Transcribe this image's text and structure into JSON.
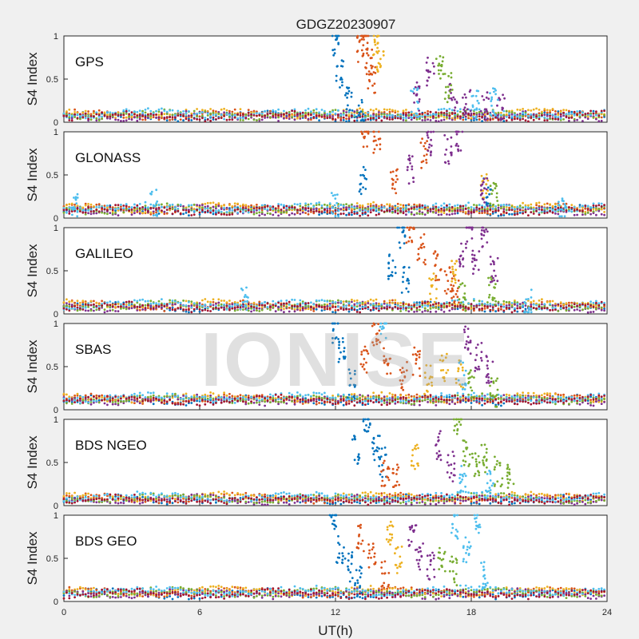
{
  "figure_title": "GDGZ20230907",
  "watermark": "IONISE",
  "colors": [
    "#0072BD",
    "#D95319",
    "#EDB120",
    "#7E2F8E",
    "#77AC30",
    "#4DBEEE",
    "#A2142F"
  ],
  "chart_data": [
    {
      "type": "scatter",
      "label": "GPS",
      "ylabel": "S4 Index",
      "xlim": [
        0,
        24
      ],
      "ylim": [
        0,
        1
      ],
      "yticks": [
        "0",
        "0.5",
        "1"
      ],
      "baseline": 0.08,
      "series": [
        {
          "values": [
            [
              12.0,
              0.95
            ],
            [
              12.2,
              0.55
            ],
            [
              12.6,
              0.3
            ],
            [
              13.1,
              0.1
            ]
          ]
        },
        {
          "values": [
            [
              13.1,
              0.85
            ],
            [
              13.3,
              0.95
            ],
            [
              13.5,
              0.7
            ],
            [
              13.6,
              0.5
            ]
          ]
        },
        {
          "values": [
            [
              13.8,
              0.95
            ],
            [
              14.0,
              0.75
            ]
          ]
        },
        {
          "values": [
            [
              15.6,
              0.3
            ],
            [
              16.2,
              0.6
            ],
            [
              17.2,
              0.3
            ],
            [
              17.8,
              0.25
            ],
            [
              18.6,
              0.2
            ],
            [
              19.3,
              0.15
            ]
          ]
        },
        {
          "values": [
            [
              16.6,
              0.65
            ],
            [
              17.0,
              0.4
            ]
          ]
        },
        {
          "values": [
            [
              15.5,
              0.22
            ],
            [
              18.2,
              0.2
            ],
            [
              19.0,
              0.25
            ]
          ]
        }
      ]
    },
    {
      "type": "scatter",
      "label": "GLONASS",
      "ylabel": "S4 Index",
      "xlim": [
        0,
        24
      ],
      "ylim": [
        0,
        1
      ],
      "yticks": [
        "0",
        "0.5",
        "1"
      ],
      "baseline": 0.1,
      "series": [
        {
          "values": [
            [
              13.2,
              0.45
            ],
            [
              18.7,
              0.3
            ]
          ]
        },
        {
          "values": [
            [
              13.3,
              1.0
            ],
            [
              13.8,
              0.9
            ],
            [
              14.6,
              0.4
            ],
            [
              15.9,
              0.75
            ]
          ]
        },
        {
          "values": [
            [
              18.6,
              0.4
            ]
          ]
        },
        {
          "values": [
            [
              15.3,
              0.55
            ],
            [
              16.2,
              0.9
            ],
            [
              17.0,
              0.8
            ],
            [
              17.5,
              0.95
            ],
            [
              18.6,
              0.3
            ]
          ]
        },
        {
          "values": [
            [
              19.0,
              0.25
            ]
          ]
        },
        {
          "values": [
            [
              0.5,
              0.15
            ],
            [
              4.0,
              0.18
            ],
            [
              12.0,
              0.12
            ],
            [
              22.0,
              0.12
            ]
          ]
        }
      ]
    },
    {
      "type": "scatter",
      "label": "GALILEO",
      "ylabel": "S4 Index",
      "xlim": [
        0,
        24
      ],
      "ylim": [
        0,
        1
      ],
      "yticks": [
        "0",
        "0.5",
        "1"
      ],
      "baseline": 0.09,
      "series": [
        {
          "values": [
            [
              14.5,
              0.55
            ],
            [
              14.9,
              0.9
            ],
            [
              15.1,
              0.4
            ]
          ]
        },
        {
          "values": [
            [
              15.3,
              0.95
            ],
            [
              15.8,
              0.75
            ],
            [
              16.5,
              0.55
            ],
            [
              17.0,
              0.4
            ],
            [
              17.3,
              0.3
            ]
          ]
        },
        {
          "values": [
            [
              16.3,
              0.3
            ],
            [
              17.2,
              0.5
            ]
          ]
        },
        {
          "values": [
            [
              17.6,
              0.7
            ],
            [
              17.9,
              1.0
            ],
            [
              18.2,
              0.6
            ],
            [
              18.6,
              0.95
            ],
            [
              19.0,
              0.5
            ]
          ]
        },
        {
          "values": [
            [
              17.6,
              0.2
            ],
            [
              18.9,
              0.25
            ]
          ]
        },
        {
          "values": [
            [
              8.0,
              0.15
            ],
            [
              20.5,
              0.12
            ]
          ]
        }
      ]
    },
    {
      "type": "scatter",
      "label": "SBAS",
      "ylabel": "S4 Index",
      "xlim": [
        0,
        24
      ],
      "ylim": [
        0,
        1
      ],
      "yticks": [
        "0",
        "0.5",
        "1"
      ],
      "baseline": 0.12,
      "series": [
        {
          "values": [
            [
              12.0,
              0.95
            ],
            [
              12.3,
              0.7
            ],
            [
              12.7,
              0.3
            ]
          ]
        },
        {
          "values": [
            [
              13.3,
              0.6
            ],
            [
              13.8,
              0.9
            ],
            [
              14.3,
              0.55
            ],
            [
              15.0,
              0.4
            ],
            [
              15.6,
              0.55
            ]
          ]
        },
        {
          "values": [
            [
              16.1,
              0.35
            ],
            [
              16.8,
              0.5
            ],
            [
              17.5,
              0.4
            ]
          ]
        },
        {
          "values": [
            [
              17.8,
              0.8
            ],
            [
              18.3,
              0.6
            ],
            [
              18.8,
              0.45
            ]
          ]
        },
        {
          "values": [
            [
              18.0,
              0.3
            ],
            [
              19.0,
              0.2
            ]
          ]
        },
        {
          "values": [
            [
              14.1,
              0.95
            ],
            [
              17.6,
              0.4
            ]
          ]
        }
      ]
    },
    {
      "type": "scatter",
      "label": "BDS NGEO",
      "ylabel": "S4 Index",
      "xlim": [
        0,
        24
      ],
      "ylim": [
        0,
        1
      ],
      "yticks": [
        "0",
        "0.5",
        "1"
      ],
      "baseline": 0.08,
      "series": [
        {
          "values": [
            [
              12.9,
              0.65
            ],
            [
              13.4,
              0.95
            ],
            [
              13.8,
              0.7
            ],
            [
              14.1,
              0.5
            ]
          ]
        },
        {
          "values": [
            [
              14.2,
              0.4
            ],
            [
              14.7,
              0.3
            ]
          ]
        },
        {
          "values": [
            [
              15.5,
              0.6
            ]
          ]
        },
        {
          "values": [
            [
              16.6,
              0.7
            ],
            [
              17.1,
              0.45
            ]
          ]
        },
        {
          "values": [
            [
              17.4,
              1.0
            ],
            [
              17.8,
              0.6
            ],
            [
              18.2,
              0.45
            ],
            [
              18.6,
              0.55
            ],
            [
              19.2,
              0.4
            ],
            [
              19.7,
              0.3
            ]
          ]
        },
        {
          "values": [
            [
              17.6,
              0.3
            ],
            [
              18.8,
              0.25
            ]
          ]
        }
      ]
    },
    {
      "type": "scatter",
      "label": "BDS GEO",
      "ylabel": "S4 Index",
      "xlim": [
        0,
        24
      ],
      "ylim": [
        0,
        1
      ],
      "yticks": [
        "0",
        "0.5",
        "1"
      ],
      "baseline": 0.1,
      "series": [
        {
          "values": [
            [
              11.9,
              1.0
            ],
            [
              12.2,
              0.6
            ],
            [
              12.6,
              0.4
            ],
            [
              13.0,
              0.25
            ]
          ]
        },
        {
          "values": [
            [
              13.1,
              0.75
            ],
            [
              13.6,
              0.5
            ],
            [
              14.2,
              0.3
            ]
          ]
        },
        {
          "values": [
            [
              14.4,
              0.75
            ],
            [
              14.8,
              0.5
            ]
          ]
        },
        {
          "values": [
            [
              15.4,
              0.8
            ],
            [
              15.7,
              0.5
            ],
            [
              16.2,
              0.4
            ]
          ]
        },
        {
          "values": [
            [
              16.7,
              0.5
            ],
            [
              17.2,
              0.35
            ]
          ]
        },
        {
          "values": [
            [
              17.3,
              0.9
            ],
            [
              17.8,
              0.6
            ],
            [
              18.3,
              0.95
            ],
            [
              18.6,
              0.3
            ]
          ]
        }
      ]
    }
  ],
  "xaxis": {
    "label": "UT(h)",
    "ticks": [
      0,
      6,
      12,
      18,
      24
    ]
  }
}
